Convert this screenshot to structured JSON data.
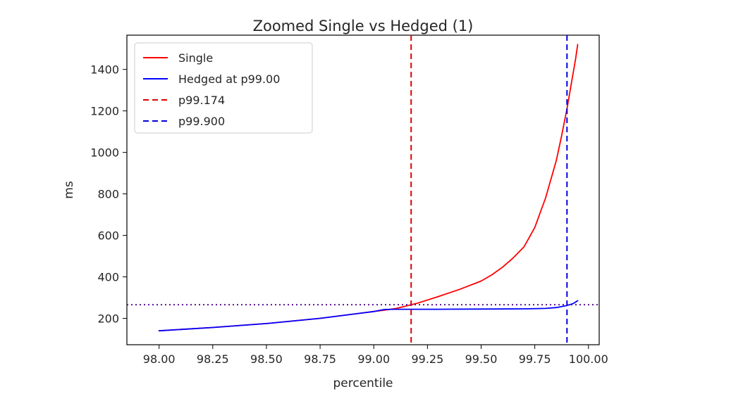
{
  "chart_data": {
    "type": "line",
    "title": "Zoomed Single vs Hedged (1)",
    "xlabel": "percentile",
    "ylabel": "ms",
    "xlim": [
      97.85,
      100.05
    ],
    "ylim": [
      73,
      1565
    ],
    "xticks": [
      98.0,
      98.25,
      98.5,
      98.75,
      99.0,
      99.25,
      99.5,
      99.75,
      100.0
    ],
    "xtick_labels": [
      "98.00",
      "98.25",
      "98.50",
      "98.75",
      "99.00",
      "99.25",
      "99.50",
      "99.75",
      "100.00"
    ],
    "yticks": [
      200,
      400,
      600,
      800,
      1000,
      1200,
      1400
    ],
    "ytick_labels": [
      "200",
      "400",
      "600",
      "800",
      "1000",
      "1200",
      "1400"
    ],
    "grid": false,
    "legend_position": "top-left",
    "series": [
      {
        "name": "Single",
        "color": "#ff0000",
        "style": "solid",
        "x": [
          98.0,
          98.25,
          98.5,
          98.75,
          99.0,
          99.1,
          99.2,
          99.3,
          99.4,
          99.5,
          99.55,
          99.6,
          99.65,
          99.7,
          99.75,
          99.8,
          99.85,
          99.875,
          99.9,
          99.925,
          99.94,
          99.95
        ],
        "y": [
          140,
          156,
          175,
          200,
          233,
          247,
          272,
          305,
          340,
          380,
          410,
          447,
          492,
          545,
          638,
          780,
          960,
          1080,
          1210,
          1360,
          1450,
          1520
        ]
      },
      {
        "name": "Hedged at p99.00",
        "color": "#0000ff",
        "style": "solid",
        "x": [
          98.0,
          98.25,
          98.5,
          98.75,
          99.0,
          99.05,
          99.1,
          99.3,
          99.5,
          99.7,
          99.8,
          99.85,
          99.9,
          99.93,
          99.95
        ],
        "y": [
          140,
          156,
          175,
          200,
          233,
          243,
          244,
          244,
          245,
          246,
          248,
          252,
          262,
          272,
          285
        ]
      }
    ],
    "reference_lines": [
      {
        "name": "p99.174",
        "orientation": "vertical",
        "value": 99.174,
        "color": "#dd0000",
        "style": "dashed",
        "in_legend": true
      },
      {
        "name": "p99.900",
        "orientation": "vertical",
        "value": 99.9,
        "color": "#0000dd",
        "style": "dashed",
        "in_legend": true
      },
      {
        "name": "",
        "orientation": "horizontal",
        "value": 266,
        "color": "#5a0f9a",
        "style": "dotted",
        "in_legend": false
      }
    ]
  }
}
